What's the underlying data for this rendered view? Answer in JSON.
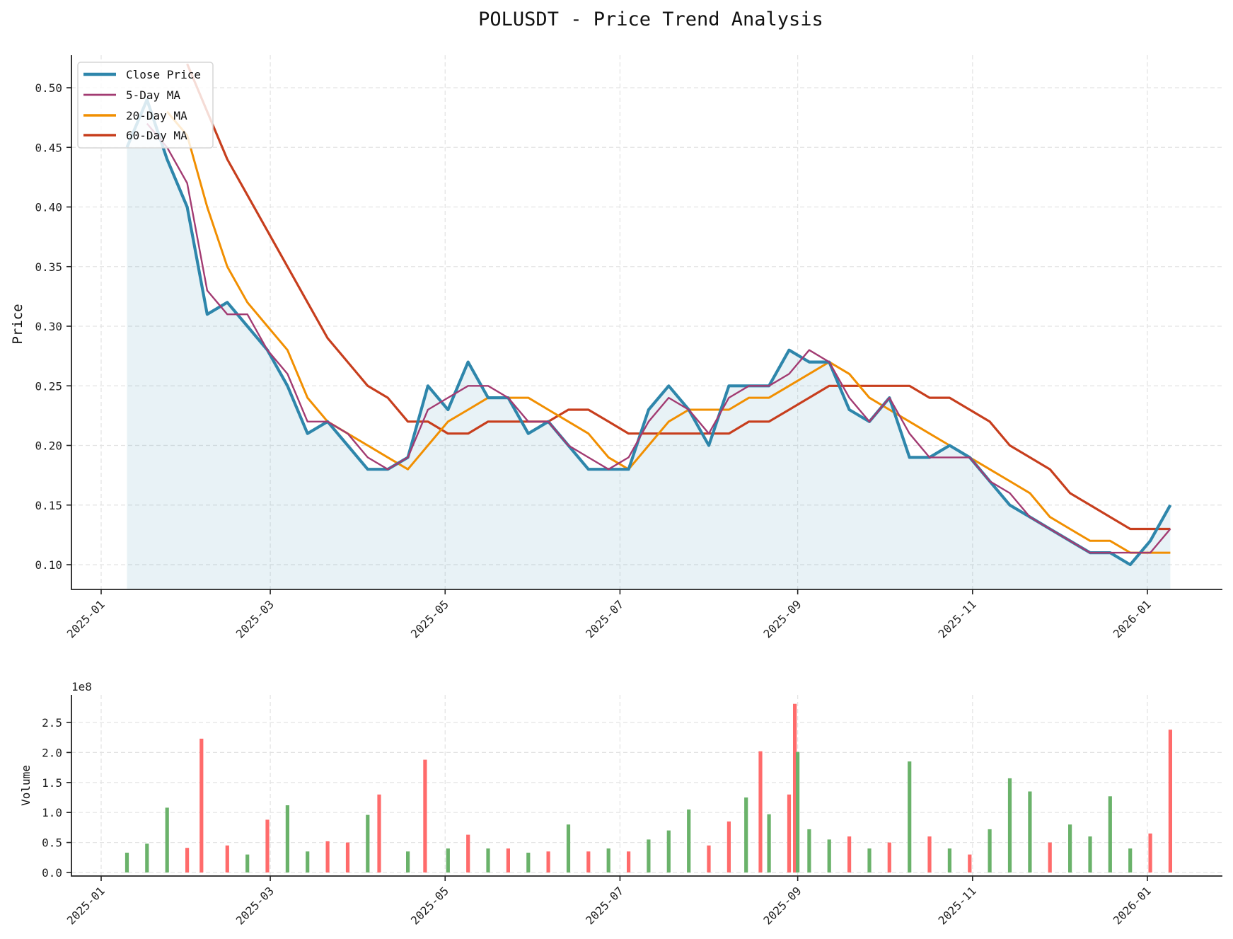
{
  "figure": {
    "title": "POLUSDT - Price Trend Analysis"
  },
  "colors": {
    "close": "#2E86AB",
    "ma5": "#A23B72",
    "ma20": "#F18F01",
    "ma60": "#C73E1D",
    "fill": "#2E86AB",
    "vol_up": "#6AB26A",
    "vol_down": "#FF6B6B"
  },
  "price_panel": {
    "ylabel": "Price",
    "yticks": [
      "0.10",
      "0.15",
      "0.20",
      "0.25",
      "0.30",
      "0.35",
      "0.40",
      "0.45",
      "0.50"
    ],
    "legend": [
      "Close Price",
      "5-Day MA",
      "20-Day MA",
      "60-Day MA"
    ]
  },
  "volume_panel": {
    "ylabel": "Volume",
    "offset_label": "1e8",
    "yticks": [
      "0.0",
      "0.5",
      "1.0",
      "1.5",
      "2.0",
      "2.5"
    ]
  },
  "xticks": [
    "2025-01",
    "2025-03",
    "2025-05",
    "2025-07",
    "2025-09",
    "2025-11",
    "2026-01"
  ],
  "chart_data": [
    {
      "type": "line",
      "title": "POLUSDT - Price Trend Analysis",
      "xlabel": "",
      "ylabel": "Price",
      "ylim": [
        0.08,
        0.53
      ],
      "xlim": [
        "2024-12-13",
        "2026-02-05"
      ],
      "grid": true,
      "legend_position": "upper left",
      "x": [
        "2025-01-10",
        "2025-01-17",
        "2025-01-24",
        "2025-01-31",
        "2025-02-07",
        "2025-02-14",
        "2025-02-21",
        "2025-02-28",
        "2025-03-07",
        "2025-03-14",
        "2025-03-21",
        "2025-03-28",
        "2025-04-04",
        "2025-04-11",
        "2025-04-18",
        "2025-04-25",
        "2025-05-02",
        "2025-05-09",
        "2025-05-16",
        "2025-05-23",
        "2025-05-30",
        "2025-06-06",
        "2025-06-13",
        "2025-06-20",
        "2025-06-27",
        "2025-07-04",
        "2025-07-11",
        "2025-07-18",
        "2025-07-25",
        "2025-08-01",
        "2025-08-08",
        "2025-08-15",
        "2025-08-22",
        "2025-08-29",
        "2025-09-05",
        "2025-09-12",
        "2025-09-19",
        "2025-09-26",
        "2025-10-03",
        "2025-10-10",
        "2025-10-17",
        "2025-10-24",
        "2025-10-31",
        "2025-11-07",
        "2025-11-14",
        "2025-11-21",
        "2025-11-28",
        "2025-12-05",
        "2025-12-12",
        "2025-12-19",
        "2025-12-26",
        "2026-01-02",
        "2026-01-09"
      ],
      "series": [
        {
          "name": "Close Price",
          "values": [
            0.45,
            0.49,
            0.44,
            0.4,
            0.31,
            0.32,
            0.3,
            0.28,
            0.25,
            0.21,
            0.22,
            0.2,
            0.18,
            0.18,
            0.19,
            0.25,
            0.23,
            0.27,
            0.24,
            0.24,
            0.21,
            0.22,
            0.2,
            0.18,
            0.18,
            0.18,
            0.23,
            0.25,
            0.23,
            0.2,
            0.25,
            0.25,
            0.25,
            0.28,
            0.27,
            0.27,
            0.23,
            0.22,
            0.24,
            0.19,
            0.19,
            0.2,
            0.19,
            0.17,
            0.15,
            0.14,
            0.13,
            0.12,
            0.11,
            0.11,
            0.1,
            0.12,
            0.15
          ]
        },
        {
          "name": "5-Day MA",
          "values": [
            null,
            0.47,
            0.45,
            0.42,
            0.33,
            0.31,
            0.31,
            0.28,
            0.26,
            0.22,
            0.22,
            0.21,
            0.19,
            0.18,
            0.19,
            0.23,
            0.24,
            0.25,
            0.25,
            0.24,
            0.22,
            0.22,
            0.2,
            0.19,
            0.18,
            0.19,
            0.22,
            0.24,
            0.23,
            0.21,
            0.24,
            0.25,
            0.25,
            0.26,
            0.28,
            0.27,
            0.24,
            0.22,
            0.24,
            0.21,
            0.19,
            0.19,
            0.19,
            0.17,
            0.16,
            0.14,
            0.13,
            0.12,
            0.11,
            0.11,
            0.11,
            0.11,
            0.13
          ]
        },
        {
          "name": "20-Day MA",
          "values": [
            null,
            null,
            0.48,
            0.46,
            0.4,
            0.35,
            0.32,
            0.3,
            0.28,
            0.24,
            0.22,
            0.21,
            0.2,
            0.19,
            0.18,
            0.2,
            0.22,
            0.23,
            0.24,
            0.24,
            0.24,
            0.23,
            0.22,
            0.21,
            0.19,
            0.18,
            0.2,
            0.22,
            0.23,
            0.23,
            0.23,
            0.24,
            0.24,
            0.25,
            0.26,
            0.27,
            0.26,
            0.24,
            0.23,
            0.22,
            0.21,
            0.2,
            0.19,
            0.18,
            0.17,
            0.16,
            0.14,
            0.13,
            0.12,
            0.12,
            0.11,
            0.11,
            0.11
          ]
        },
        {
          "name": "60-Day MA",
          "values": [
            null,
            null,
            null,
            0.52,
            0.48,
            0.44,
            0.41,
            0.38,
            0.35,
            0.32,
            0.29,
            0.27,
            0.25,
            0.24,
            0.22,
            0.22,
            0.21,
            0.21,
            0.22,
            0.22,
            0.22,
            0.22,
            0.23,
            0.23,
            0.22,
            0.21,
            0.21,
            0.21,
            0.21,
            0.21,
            0.21,
            0.22,
            0.22,
            0.23,
            0.24,
            0.25,
            0.25,
            0.25,
            0.25,
            0.25,
            0.24,
            0.24,
            0.23,
            0.22,
            0.2,
            0.19,
            0.18,
            0.16,
            0.15,
            0.14,
            0.13,
            0.13,
            0.13
          ]
        }
      ]
    },
    {
      "type": "bar",
      "xlabel": "",
      "ylabel": "Volume",
      "y_scale_label": "1e8",
      "ylim": [
        0,
        2.95
      ],
      "units": "x1e8",
      "grid": true,
      "x": [
        "2025-01-10",
        "2025-01-17",
        "2025-01-24",
        "2025-01-31",
        "2025-02-05",
        "2025-02-14",
        "2025-02-21",
        "2025-02-28",
        "2025-03-07",
        "2025-03-14",
        "2025-03-21",
        "2025-03-28",
        "2025-04-04",
        "2025-04-08",
        "2025-04-18",
        "2025-04-24",
        "2025-05-02",
        "2025-05-09",
        "2025-05-16",
        "2025-05-23",
        "2025-05-30",
        "2025-06-06",
        "2025-06-13",
        "2025-06-20",
        "2025-06-27",
        "2025-07-04",
        "2025-07-11",
        "2025-07-18",
        "2025-07-25",
        "2025-08-01",
        "2025-08-08",
        "2025-08-14",
        "2025-08-19",
        "2025-08-22",
        "2025-08-29",
        "2025-08-31",
        "2025-09-01",
        "2025-09-05",
        "2025-09-12",
        "2025-09-19",
        "2025-09-26",
        "2025-10-03",
        "2025-10-10",
        "2025-10-17",
        "2025-10-24",
        "2025-10-31",
        "2025-11-07",
        "2025-11-14",
        "2025-11-21",
        "2025-11-28",
        "2025-12-05",
        "2025-12-12",
        "2025-12-19",
        "2025-12-26",
        "2026-01-02",
        "2026-01-09"
      ],
      "values": [
        0.33,
        0.48,
        1.08,
        0.41,
        2.23,
        0.45,
        0.3,
        0.88,
        1.12,
        0.35,
        0.52,
        0.5,
        0.96,
        1.3,
        0.35,
        1.88,
        0.4,
        0.63,
        0.4,
        0.4,
        0.33,
        0.35,
        0.8,
        0.35,
        0.4,
        0.35,
        0.55,
        0.7,
        1.05,
        0.45,
        0.85,
        1.25,
        2.02,
        0.97,
        1.3,
        2.81,
        2.01,
        0.72,
        0.55,
        0.6,
        0.4,
        0.5,
        1.85,
        0.6,
        0.4,
        0.3,
        0.72,
        1.57,
        1.35,
        0.5,
        0.8,
        0.6,
        1.27,
        0.4,
        0.65,
        2.38
      ],
      "colors": [
        "up",
        "up",
        "up",
        "down",
        "down",
        "down",
        "up",
        "down",
        "up",
        "up",
        "down",
        "down",
        "up",
        "down",
        "up",
        "down",
        "up",
        "down",
        "up",
        "down",
        "up",
        "down",
        "up",
        "down",
        "up",
        "down",
        "up",
        "up",
        "up",
        "down",
        "down",
        "up",
        "down",
        "up",
        "down",
        "down",
        "up",
        "up",
        "up",
        "down",
        "up",
        "down",
        "up",
        "down",
        "up",
        "down",
        "up",
        "up",
        "up",
        "down",
        "up",
        "up",
        "up",
        "up",
        "down",
        "down"
      ]
    }
  ]
}
